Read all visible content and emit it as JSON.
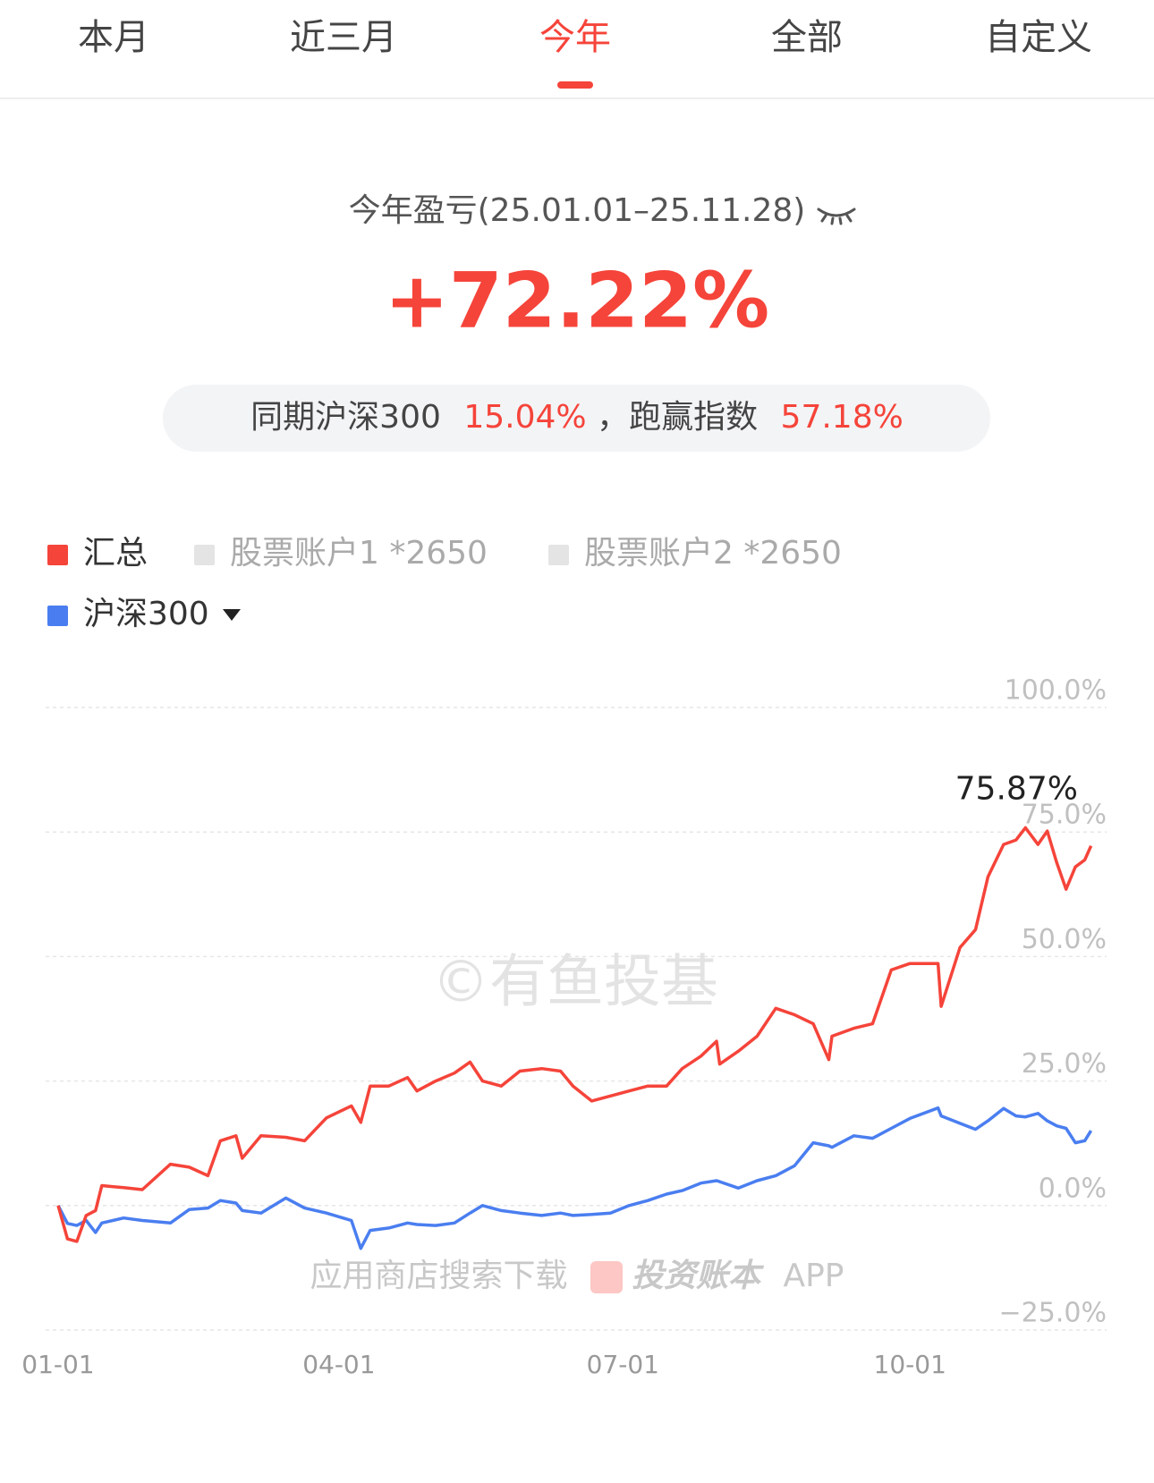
{
  "tabs": [
    "本月",
    "近三月",
    "今年",
    "全部",
    "自定义"
  ],
  "active_tab": 2,
  "summary": {
    "label": "今年盈亏(25.01.01–25.11.28)",
    "value": "+72.22%",
    "benchmark_label": "同期沪深300",
    "benchmark_value": "15.04%",
    "beat_label": "，跑赢指数",
    "beat_value": "57.18%"
  },
  "watermark": "©有鱼投基",
  "promo": {
    "text": "应用商店搜索下载",
    "brand": "投资账本",
    "suffix": "APP"
  },
  "chart_data": {
    "type": "line",
    "x": [
      0,
      3,
      6,
      9,
      12,
      14,
      21,
      27,
      36,
      42,
      48,
      52,
      57,
      59,
      65,
      73,
      79,
      86,
      94,
      97,
      100,
      106,
      112,
      115,
      121,
      127,
      132,
      136,
      142,
      148,
      155,
      161,
      165,
      171,
      177,
      183,
      189,
      195,
      200,
      206,
      211,
      212,
      218,
      224,
      230,
      236,
      242,
      247,
      248,
      255,
      261,
      267,
      273,
      282,
      283,
      289,
      294,
      298,
      303,
      307,
      310,
      314,
      317,
      320,
      323,
      326,
      329,
      331
    ],
    "xlim": [
      -4,
      336
    ],
    "xticks": [
      {
        "value": 0,
        "label": "01-01"
      },
      {
        "value": 90,
        "label": "04-01"
      },
      {
        "value": 181,
        "label": "07-01"
      },
      {
        "value": 273,
        "label": "10-01"
      }
    ],
    "ylim": [
      -25,
      100
    ],
    "yticks": [
      {
        "value": -25,
        "label": "−25.0%"
      },
      {
        "value": 0,
        "label": "0.0%"
      },
      {
        "value": 25,
        "label": "25.0%"
      },
      {
        "value": 50,
        "label": "50.0%"
      },
      {
        "value": 75,
        "label": "75.0%"
      },
      {
        "value": 100,
        "label": "100.0%"
      }
    ],
    "grid": true,
    "series": [
      {
        "name": "汇总",
        "color": "#f5443a",
        "values": [
          0,
          -6.7,
          -7.2,
          -2,
          -1,
          4,
          3.6,
          3.2,
          8.3,
          7.7,
          6,
          13,
          14,
          9.5,
          14,
          13.7,
          13,
          17.6,
          20,
          16.7,
          24,
          24,
          25.7,
          23,
          25,
          26.6,
          28.8,
          25,
          24,
          27,
          27.5,
          27,
          24,
          21,
          22,
          23,
          24,
          24,
          27.5,
          30,
          33,
          28.4,
          31,
          34,
          39.6,
          38.3,
          36.5,
          29.3,
          34,
          35.6,
          36.5,
          47.3,
          48.6,
          48.6,
          40,
          51.8,
          55.4,
          66,
          72.5,
          73.4,
          75.87,
          72.5,
          75.2,
          68.9,
          63.5,
          68,
          69.4,
          72.22
        ]
      },
      {
        "name": "沪深300",
        "color": "#4a7ef0",
        "values": [
          0,
          -3.6,
          -4,
          -3,
          -5.4,
          -3.5,
          -2.5,
          -3,
          -3.5,
          -0.8,
          -0.5,
          1,
          0.5,
          -1,
          -1.5,
          1.5,
          -0.5,
          -1.5,
          -3,
          -8.6,
          -5,
          -4.5,
          -3.5,
          -3.8,
          -4,
          -3.5,
          -1.5,
          0,
          -1,
          -1.5,
          -2,
          -1.5,
          -2,
          -1.8,
          -1.5,
          0,
          1,
          2.3,
          3,
          4.5,
          5,
          4.8,
          3.5,
          5,
          6,
          8,
          12.6,
          12,
          11.7,
          14,
          13.5,
          15.5,
          17.5,
          19.6,
          18,
          16.5,
          15.3,
          17,
          19.5,
          18,
          17.8,
          18.5,
          17,
          16,
          15.5,
          12.6,
          13,
          15.04
        ]
      }
    ],
    "inactive_series": [
      {
        "name": "股票账户1 *2650",
        "color": "#e4e4e4"
      },
      {
        "name": "股票账户2 *2650",
        "color": "#e4e4e4"
      }
    ],
    "max_label": "75.87%"
  }
}
